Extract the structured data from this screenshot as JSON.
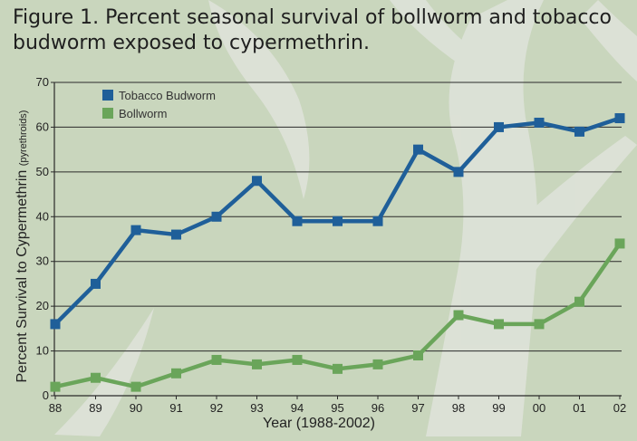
{
  "figure": {
    "title_line1": "Figure 1.  Percent seasonal survival of bollworm and tobacco",
    "title_line2": "budworm exposed to cypermethrin."
  },
  "chart_data": {
    "type": "line",
    "title": "Figure 1.  Percent seasonal survival of bollworm and tobacco budworm exposed to cypermethrin.",
    "xlabel": "Year (1988-2002)",
    "ylabel": "Percent Survival to Cypermethrin",
    "ylabel_suffix": "(pyrethroids)",
    "categories": [
      "88",
      "89",
      "90",
      "91",
      "92",
      "93",
      "94",
      "95",
      "96",
      "97",
      "98",
      "99",
      "00",
      "01",
      "02"
    ],
    "ylim": [
      0,
      70
    ],
    "yticks": [
      0,
      10,
      20,
      30,
      40,
      50,
      60,
      70
    ],
    "grid": true,
    "legend_position": "top-left",
    "series": [
      {
        "name": "Tobacco Budworm",
        "color": "#1f5f99",
        "values": [
          16,
          25,
          37,
          36,
          40,
          48,
          39,
          39,
          39,
          55,
          50,
          60,
          61,
          59,
          62
        ]
      },
      {
        "name": "Bollworm",
        "color": "#6aa55a",
        "values": [
          2,
          4,
          2,
          5,
          8,
          7,
          8,
          6,
          7,
          9,
          18,
          16,
          16,
          21,
          34
        ]
      }
    ]
  }
}
